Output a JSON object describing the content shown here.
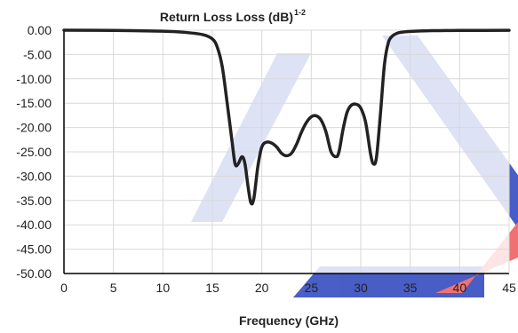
{
  "chart_data": {
    "type": "line",
    "title": "Return Loss Loss (dB)",
    "title_superscript": "1-2",
    "xlabel": "Frequency (GHz)",
    "ylabel": "",
    "xlim": [
      0,
      45
    ],
    "ylim": [
      -50,
      0
    ],
    "x_ticks": [
      "0",
      "5",
      "10",
      "15",
      "20",
      "25",
      "30",
      "35",
      "40",
      "45"
    ],
    "y_ticks": [
      "0.00",
      "-5.00",
      "-10.00",
      "-15.00",
      "-20.00",
      "-25.00",
      "-30.00",
      "-35.00",
      "-40.00",
      "-45.00",
      "-50.00"
    ],
    "grid": true,
    "legend": "none",
    "watermark": "AEL",
    "colors": {
      "line": "#222222",
      "grid": "#d9d9d9",
      "axis": "#000000",
      "watermark_blue": "#3f55c4",
      "watermark_red": "#f06a6a"
    },
    "series": [
      {
        "x": [
          0,
          5,
          10,
          12,
          14,
          15,
          15.5,
          16,
          16.5,
          17,
          17.3,
          17.6,
          18.0,
          18.3,
          18.6,
          18.9,
          19.2,
          19.6,
          20.0,
          20.5,
          21.0,
          21.5,
          22.0,
          22.5,
          23.0,
          23.5,
          24.0,
          24.5,
          25.0,
          25.5,
          26.0,
          26.5,
          27.0,
          27.5,
          27.8,
          28.2,
          28.6,
          29.0,
          29.5,
          30.0,
          30.5,
          31.0,
          31.3,
          31.6,
          32.0,
          32.4,
          32.8,
          33.2,
          33.6,
          34.0,
          35.0,
          36.0,
          38.0,
          40.0,
          45.0
        ],
        "y": [
          0,
          -0.05,
          -0.2,
          -0.4,
          -0.9,
          -1.8,
          -3.5,
          -7.5,
          -15.0,
          -23.0,
          -27.5,
          -27.5,
          -26.0,
          -27.5,
          -32.0,
          -35.5,
          -34.5,
          -28.0,
          -24.0,
          -23.0,
          -23.2,
          -24.0,
          -25.3,
          -25.8,
          -25.3,
          -23.5,
          -21.0,
          -19.0,
          -17.8,
          -17.6,
          -18.5,
          -21.0,
          -25.0,
          -26.0,
          -25.0,
          -20.5,
          -17.0,
          -15.5,
          -15.2,
          -16.0,
          -19.0,
          -25.5,
          -27.5,
          -26.0,
          -17.0,
          -7.0,
          -2.5,
          -1.2,
          -0.7,
          -0.45,
          -0.25,
          -0.15,
          -0.08,
          -0.05,
          -0.03
        ]
      }
    ]
  }
}
